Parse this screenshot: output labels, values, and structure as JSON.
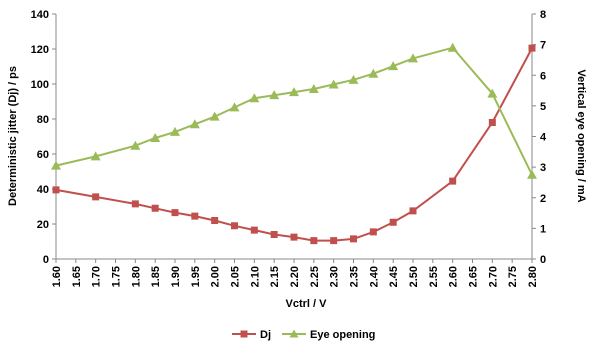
{
  "chart_data": {
    "type": "line",
    "xlabel": "Vctrl / V",
    "ylabel_left": "Deterministic jitter (Dj) / ps",
    "ylabel_right": "Vertical eye opening / mA",
    "x_ticks": [
      "1.60",
      "1.65",
      "1.70",
      "1.75",
      "1.80",
      "1.85",
      "1.90",
      "1.95",
      "2.00",
      "2.05",
      "2.10",
      "2.15",
      "2.20",
      "2.25",
      "2.30",
      "2.35",
      "2.40",
      "2.45",
      "2.50",
      "2.55",
      "2.60",
      "2.65",
      "2.70",
      "2.75",
      "2.80"
    ],
    "xlim": [
      1.6,
      2.8
    ],
    "ylim_left": [
      0,
      140
    ],
    "ylim_right": [
      0,
      8
    ],
    "yticks_left": [
      0,
      20,
      40,
      60,
      80,
      100,
      120,
      140
    ],
    "yticks_right": [
      0,
      1,
      2,
      3,
      4,
      5,
      6,
      7,
      8
    ],
    "grid": false,
    "legend_position": "bottom",
    "series": [
      {
        "name": "Dj",
        "axis": "left",
        "color": "#c0504d",
        "marker": "square",
        "x": [
          1.6,
          1.7,
          1.8,
          1.85,
          1.9,
          1.95,
          2.0,
          2.05,
          2.1,
          2.15,
          2.2,
          2.25,
          2.3,
          2.35,
          2.4,
          2.45,
          2.5,
          2.6,
          2.7,
          2.8
        ],
        "y": [
          39.5,
          35.5,
          31.5,
          29,
          26.5,
          24.5,
          22,
          19,
          16.5,
          14,
          12.5,
          10.5,
          10.5,
          11.5,
          15.5,
          21,
          27.5,
          44.5,
          78,
          120.5
        ]
      },
      {
        "name": "Eye opening",
        "axis": "right",
        "color": "#9bbb59",
        "marker": "triangle",
        "x": [
          1.6,
          1.7,
          1.8,
          1.85,
          1.9,
          1.95,
          2.0,
          2.05,
          2.1,
          2.15,
          2.2,
          2.25,
          2.3,
          2.35,
          2.4,
          2.45,
          2.5,
          2.6,
          2.7,
          2.8
        ],
        "y": [
          3.05,
          3.35,
          3.7,
          3.95,
          4.15,
          4.4,
          4.65,
          4.95,
          5.25,
          5.35,
          5.45,
          5.55,
          5.7,
          5.85,
          6.05,
          6.3,
          6.55,
          6.9,
          5.4,
          2.75
        ]
      }
    ]
  }
}
